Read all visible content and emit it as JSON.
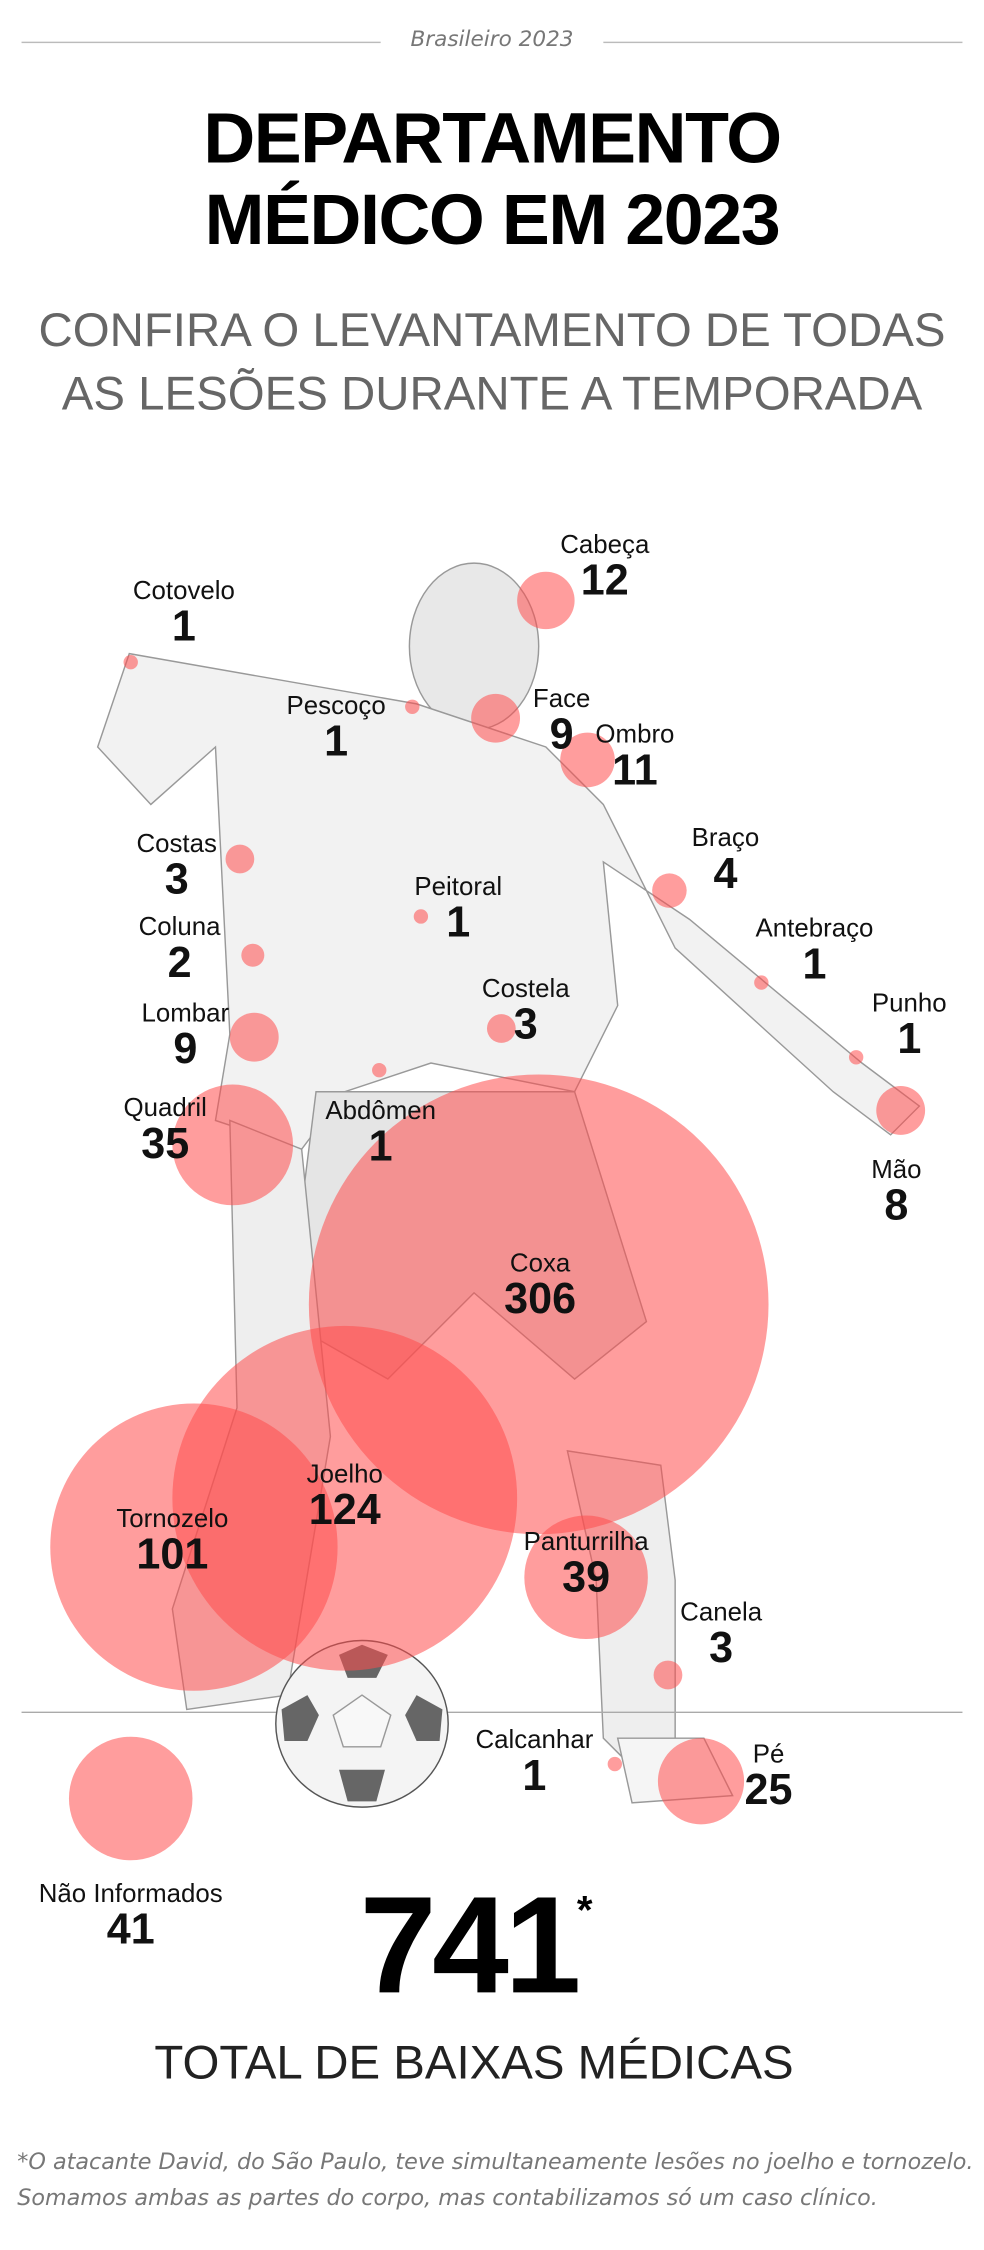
{
  "header": {
    "kicker": "Brasileiro 2023",
    "title_line1": "DEPARTAMENTO",
    "title_line2": "MÉDICO EM 2023",
    "subtitle_line1": "CONFIRA O LEVANTAMENTO DE TODAS",
    "subtitle_line2": "AS LESÕES DURANTE A TEMPORADA"
  },
  "colors": {
    "bubble": "#ff4d4d",
    "text": "#111111",
    "muted": "#777777"
  },
  "injuries": [
    {
      "name": "Cabeça",
      "value": "12"
    },
    {
      "name": "Cotovelo",
      "value": "1"
    },
    {
      "name": "Pescoço",
      "value": "1"
    },
    {
      "name": "Face",
      "value": "9"
    },
    {
      "name": "Ombro",
      "value": "11"
    },
    {
      "name": "Costas",
      "value": "3"
    },
    {
      "name": "Braço",
      "value": "4"
    },
    {
      "name": "Peitoral",
      "value": "1"
    },
    {
      "name": "Antebraço",
      "value": "1"
    },
    {
      "name": "Coluna",
      "value": "2"
    },
    {
      "name": "Lombar",
      "value": "9"
    },
    {
      "name": "Costela",
      "value": "3"
    },
    {
      "name": "Punho",
      "value": "1"
    },
    {
      "name": "Abdômen",
      "value": "1"
    },
    {
      "name": "Quadril",
      "value": "35"
    },
    {
      "name": "Mão",
      "value": "8"
    },
    {
      "name": "Coxa",
      "value": "306"
    },
    {
      "name": "Joelho",
      "value": "124"
    },
    {
      "name": "Tornozelo",
      "value": "101"
    },
    {
      "name": "Panturrilha",
      "value": "39"
    },
    {
      "name": "Canela",
      "value": "3"
    },
    {
      "name": "Calcanhar",
      "value": "1"
    },
    {
      "name": "Pé",
      "value": "25"
    },
    {
      "name": "Não Informados",
      "value": "41"
    }
  ],
  "total": {
    "value": "741",
    "asterisk": "*",
    "label": "TOTAL DE BAIXAS MÉDICAS"
  },
  "footnote": {
    "line1": "*O atacante David, do São Paulo, teve simultaneamente lesões no joelho e tornozelo.",
    "line2": "Somamos ambas as partes do corpo, mas contabilizamos só um caso clínico."
  }
}
